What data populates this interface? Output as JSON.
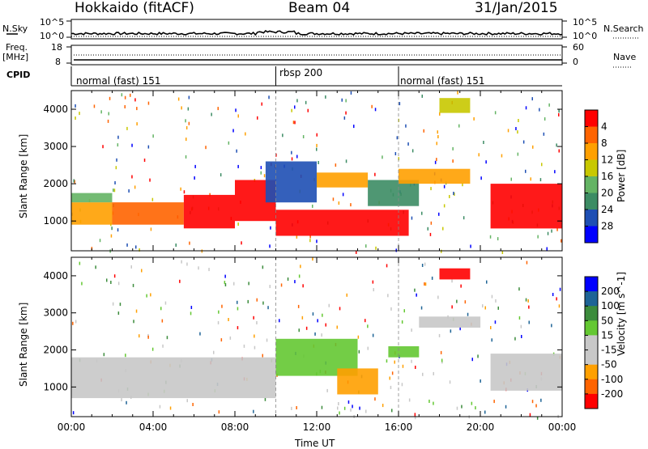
{
  "header": {
    "title": "Hokkaido (fitACF)",
    "beam": "Beam 04",
    "date": "31/Jan/2015"
  },
  "strip_labels": {
    "nsky": "N.Sky",
    "nsky_ticks": [
      "10^5",
      "10^0"
    ],
    "nsearch": "N.Search",
    "nsearch_ticks": [
      "10^5",
      "10^0"
    ],
    "freq": "Freq.",
    "freq_unit": "[MHz]",
    "freq_ticks": [
      "18",
      "8"
    ],
    "nave": "Nave",
    "nave_ticks": [
      "60",
      "0"
    ],
    "cpid": "CPID"
  },
  "cpid_segments": [
    {
      "label": "normal (fast) 151",
      "start_hour": 0
    },
    {
      "label": "rbsp 200",
      "start_hour": 10
    },
    {
      "label": "normal (fast) 151",
      "start_hour": 16
    }
  ],
  "colors": {
    "power": [
      "#0000ff",
      "#1e4fb4",
      "#3c8c64",
      "#64b464",
      "#c8c800",
      "#ffa000",
      "#ff6400",
      "#ff0000"
    ],
    "velocity": [
      "#ff0000",
      "#ff6400",
      "#ffa000",
      "#c8c8c8",
      "#c8c8c8",
      "#64c832",
      "#3c8c3c",
      "#1e6496",
      "#0000ff"
    ]
  },
  "chart_data": [
    {
      "type": "heatmap",
      "panel": "power",
      "xlabel": "",
      "ylabel": "Slant Range [km]",
      "ylim": [
        200,
        4500
      ],
      "xlim_hours": [
        0,
        24
      ],
      "yticks": [
        "1000",
        "2000",
        "3000",
        "4000"
      ],
      "colorbar_label": "Power [dB]",
      "colorbar_ticks": [
        "4",
        "8",
        "12",
        "16",
        "20",
        "24",
        "28"
      ],
      "colorbar_range": [
        0,
        30
      ],
      "regions": [
        {
          "x0": 0.0,
          "x1": 2.0,
          "y0": 900,
          "y1": 1500,
          "level": 5
        },
        {
          "x0": 0.0,
          "x1": 2.0,
          "y0": 1500,
          "y1": 1750,
          "level": 3
        },
        {
          "x0": 2.0,
          "x1": 5.5,
          "y0": 900,
          "y1": 1500,
          "level": 6
        },
        {
          "x0": 5.5,
          "x1": 8.0,
          "y0": 800,
          "y1": 1700,
          "level": 7
        },
        {
          "x0": 8.0,
          "x1": 10.0,
          "y0": 1000,
          "y1": 2100,
          "level": 7
        },
        {
          "x0": 9.5,
          "x1": 12.0,
          "y0": 1500,
          "y1": 2600,
          "level": 1
        },
        {
          "x0": 10.0,
          "x1": 16.5,
          "y0": 600,
          "y1": 1300,
          "level": 7
        },
        {
          "x0": 12.0,
          "x1": 14.5,
          "y0": 1900,
          "y1": 2300,
          "level": 5
        },
        {
          "x0": 14.5,
          "x1": 17.0,
          "y0": 1400,
          "y1": 2100,
          "level": 2
        },
        {
          "x0": 16.0,
          "x1": 19.5,
          "y0": 2000,
          "y1": 2400,
          "level": 5
        },
        {
          "x0": 18.0,
          "x1": 19.5,
          "y0": 3900,
          "y1": 4300,
          "level": 4
        },
        {
          "x0": 20.5,
          "x1": 24.0,
          "y0": 800,
          "y1": 2000,
          "level": 7
        }
      ]
    },
    {
      "type": "heatmap",
      "panel": "velocity",
      "xlabel": "Time UT",
      "ylabel": "Slant Range [km]",
      "ylim": [
        200,
        4500
      ],
      "xlim_hours": [
        0,
        24
      ],
      "xticks": [
        "00:00",
        "04:00",
        "08:00",
        "12:00",
        "16:00",
        "20:00",
        "00:00"
      ],
      "yticks": [
        "1000",
        "2000",
        "3000",
        "4000"
      ],
      "colorbar_label": "Velocity [m s^-1]",
      "colorbar_ticks": [
        "200",
        "100",
        "50",
        "15",
        "-15",
        "-50",
        "-100",
        "-200"
      ],
      "colorbar_range": [
        -250,
        250
      ],
      "regions": [
        {
          "x0": 0.0,
          "x1": 10.0,
          "y0": 700,
          "y1": 1800,
          "level": 3
        },
        {
          "x0": 10.0,
          "x1": 14.0,
          "y0": 1300,
          "y1": 2300,
          "level": 5
        },
        {
          "x0": 13.0,
          "x1": 15.0,
          "y0": 800,
          "y1": 1500,
          "level": 2
        },
        {
          "x0": 15.5,
          "x1": 17.0,
          "y0": 1800,
          "y1": 2100,
          "level": 5
        },
        {
          "x0": 17.0,
          "x1": 20.0,
          "y0": 2600,
          "y1": 2900,
          "level": 3
        },
        {
          "x0": 18.0,
          "x1": 19.5,
          "y0": 3900,
          "y1": 4200,
          "level": 0
        },
        {
          "x0": 20.5,
          "x1": 24.0,
          "y0": 900,
          "y1": 1900,
          "level": 3
        }
      ]
    }
  ]
}
